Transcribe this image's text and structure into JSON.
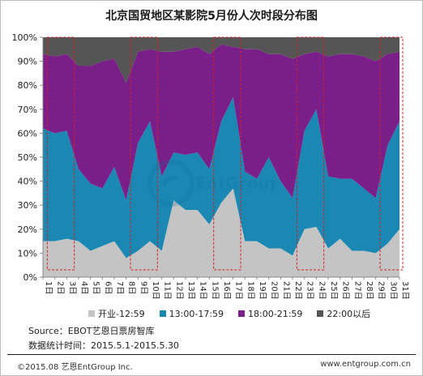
{
  "page": {
    "source": "Source：EBOT艺恩日票房智库",
    "stat_period": "数据统计时间：2015.5.1-2015.5.30",
    "copyright": "©2015.08  艺恩EntGroup Inc.",
    "website": "www.entgroup.com.cn",
    "watermark_text": "EntGroup"
  },
  "chart_data": {
    "type": "area",
    "stacked": true,
    "percent": true,
    "title": "北京国贸地区某影院5月份人次时段分布图",
    "categories": [
      "1日",
      "2日",
      "3日",
      "4日",
      "5日",
      "6日",
      "7日",
      "8日",
      "9日",
      "10日",
      "11日",
      "12日",
      "13日",
      "14日",
      "15日",
      "16日",
      "17日",
      "18日",
      "19日",
      "20日",
      "21日",
      "22日",
      "23日",
      "24日",
      "25日",
      "26日",
      "27日",
      "28日",
      "29日",
      "30日",
      "31日"
    ],
    "ylim": [
      0,
      100
    ],
    "yticks": [
      "0%",
      "10%",
      "20%",
      "30%",
      "40%",
      "50%",
      "60%",
      "70%",
      "80%",
      "90%",
      "100%"
    ],
    "grid": false,
    "legend_position": "bottom",
    "series": [
      {
        "name": "开业-12:59",
        "color": "#c4c4c4",
        "values": [
          15,
          15,
          16,
          15,
          11,
          13,
          15,
          8,
          11,
          15,
          11,
          32,
          28,
          28,
          22,
          31,
          37,
          15,
          15,
          12,
          12,
          9,
          20,
          21,
          12,
          16,
          11,
          11,
          10,
          14,
          20
        ]
      },
      {
        "name": "13:00-17:59",
        "color": "#1b87b3",
        "values": [
          47,
          45,
          45,
          30,
          28,
          24,
          31,
          24,
          45,
          50,
          31,
          20,
          23,
          24,
          23,
          34,
          38,
          29,
          26,
          38,
          28,
          24,
          41,
          49,
          30,
          25,
          30,
          26,
          23,
          41,
          45
        ]
      },
      {
        "name": "18:00-21:59",
        "color": "#7a1e8a",
        "values": [
          31,
          32,
          32,
          43,
          49,
          53,
          45,
          49,
          38,
          30,
          52,
          42,
          44,
          44,
          48,
          32,
          21,
          51,
          54,
          43,
          53,
          58,
          32,
          24,
          50,
          52,
          52,
          55,
          57,
          38,
          29
        ]
      },
      {
        "name": "22:00以后",
        "color": "#555555",
        "values": [
          7,
          8,
          7,
          12,
          12,
          10,
          9,
          19,
          6,
          5,
          6,
          6,
          5,
          4,
          7,
          3,
          4,
          5,
          5,
          7,
          7,
          9,
          7,
          6,
          8,
          7,
          7,
          8,
          10,
          7,
          6
        ]
      }
    ],
    "highlight_boxes": [
      {
        "from": "2日",
        "to": "3日"
      },
      {
        "from": "9日",
        "to": "10日"
      },
      {
        "from": "16日",
        "to": "17日"
      },
      {
        "from": "23日",
        "to": "24日"
      },
      {
        "from": "30日",
        "to": "31日"
      }
    ]
  }
}
